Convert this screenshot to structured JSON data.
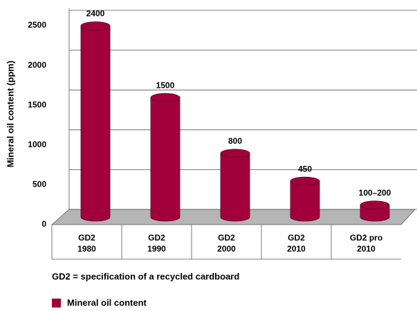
{
  "chart_data": {
    "type": "bar3d",
    "y_label": "Mineral oil content (ppm)",
    "categories": [
      [
        "GD2",
        "1980"
      ],
      [
        "GD2",
        "1990"
      ],
      [
        "GD2",
        "2000"
      ],
      [
        "GD2",
        "2010"
      ],
      [
        "GD2 pro",
        "2010"
      ]
    ],
    "series": [
      {
        "name": "Mineral oil content",
        "color": "#a1003b",
        "values": [
          2400,
          1500,
          800,
          450,
          150
        ],
        "value_labels": [
          "2400",
          "1500",
          "800",
          "450",
          "100–200"
        ]
      }
    ],
    "ylim": [
      0,
      2500
    ],
    "yticks": [
      0,
      500,
      1000,
      1500,
      2000,
      2500
    ],
    "grid": true,
    "note": "GD2 = specification of a recycled cardboard"
  }
}
